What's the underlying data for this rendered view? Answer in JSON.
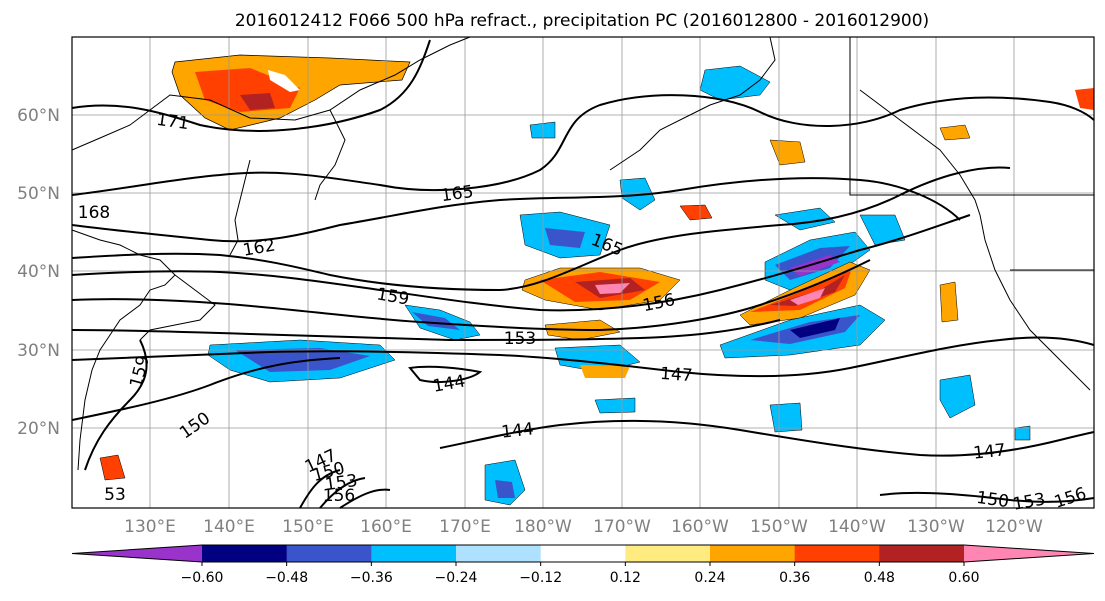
{
  "title": "2016012412 F066 500 hPa refract., precipitation PC (2016012800 - 2016012900)",
  "map": {
    "lat_labels": [
      "60°N",
      "50°N",
      "40°N",
      "30°N",
      "20°N"
    ],
    "lon_labels": [
      "130°E",
      "140°E",
      "150°E",
      "160°E",
      "170°E",
      "180°W",
      "170°W",
      "160°W",
      "150°W",
      "140°W",
      "130°W",
      "120°W"
    ],
    "contour_labels": [
      {
        "text": "171"
      },
      {
        "text": "168"
      },
      {
        "text": "165"
      },
      {
        "text": "165"
      },
      {
        "text": "162"
      },
      {
        "text": "159"
      },
      {
        "text": "159"
      },
      {
        "text": "156"
      },
      {
        "text": "153"
      },
      {
        "text": "150"
      },
      {
        "text": "147"
      },
      {
        "text": "144"
      },
      {
        "text": "144"
      },
      {
        "text": "147"
      },
      {
        "text": "147"
      },
      {
        "text": "150"
      },
      {
        "text": "153"
      },
      {
        "text": "156"
      },
      {
        "text": "150"
      },
      {
        "text": "153"
      },
      {
        "text": "156"
      },
      {
        "text": "53"
      }
    ]
  },
  "colorbar": {
    "tick_labels": [
      "−0.60",
      "−0.48",
      "−0.36",
      "−0.24",
      "−0.12",
      "0.12",
      "0.24",
      "0.36",
      "0.48",
      "0.60"
    ],
    "colors": [
      "#9933cc",
      "#000080",
      "#3a55cc",
      "#00bfff",
      "#aee1ff",
      "#ffffff",
      "#ffeb80",
      "#ffa500",
      "#ff4000",
      "#b22222",
      "#ff85b3"
    ]
  }
}
